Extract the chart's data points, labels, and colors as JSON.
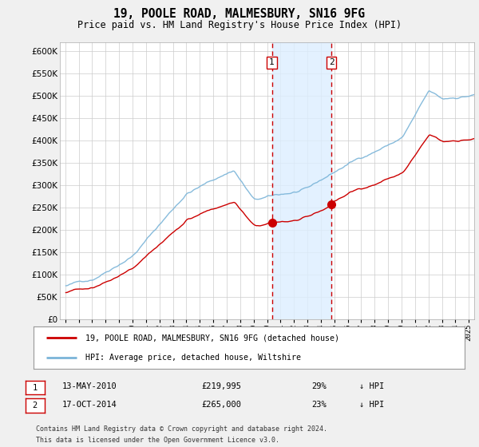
{
  "title": "19, POOLE ROAD, MALMESBURY, SN16 9FG",
  "subtitle": "Price paid vs. HM Land Registry's House Price Index (HPI)",
  "legend_property": "19, POOLE ROAD, MALMESBURY, SN16 9FG (detached house)",
  "legend_hpi": "HPI: Average price, detached house, Wiltshire",
  "transaction1_date": "13-MAY-2010",
  "transaction1_price": 219995,
  "transaction1_pct": "29%",
  "transaction2_date": "17-OCT-2014",
  "transaction2_price": 265000,
  "transaction2_pct": "23%",
  "footnote1": "Contains HM Land Registry data © Crown copyright and database right 2024.",
  "footnote2": "This data is licensed under the Open Government Licence v3.0.",
  "ylim": [
    0,
    620000
  ],
  "yticks": [
    0,
    50000,
    100000,
    150000,
    200000,
    250000,
    300000,
    350000,
    400000,
    450000,
    500000,
    550000,
    600000
  ],
  "xmin": 1994.6,
  "xmax": 2025.4,
  "vline1_x": 2010.36,
  "vline2_x": 2014.79,
  "hpi_color": "#7ab4d8",
  "property_color": "#cc0000",
  "background_color": "#f0f0f0",
  "plot_bg_color": "#ffffff",
  "shade_color": "#ddeeff",
  "grid_color": "#cccccc"
}
